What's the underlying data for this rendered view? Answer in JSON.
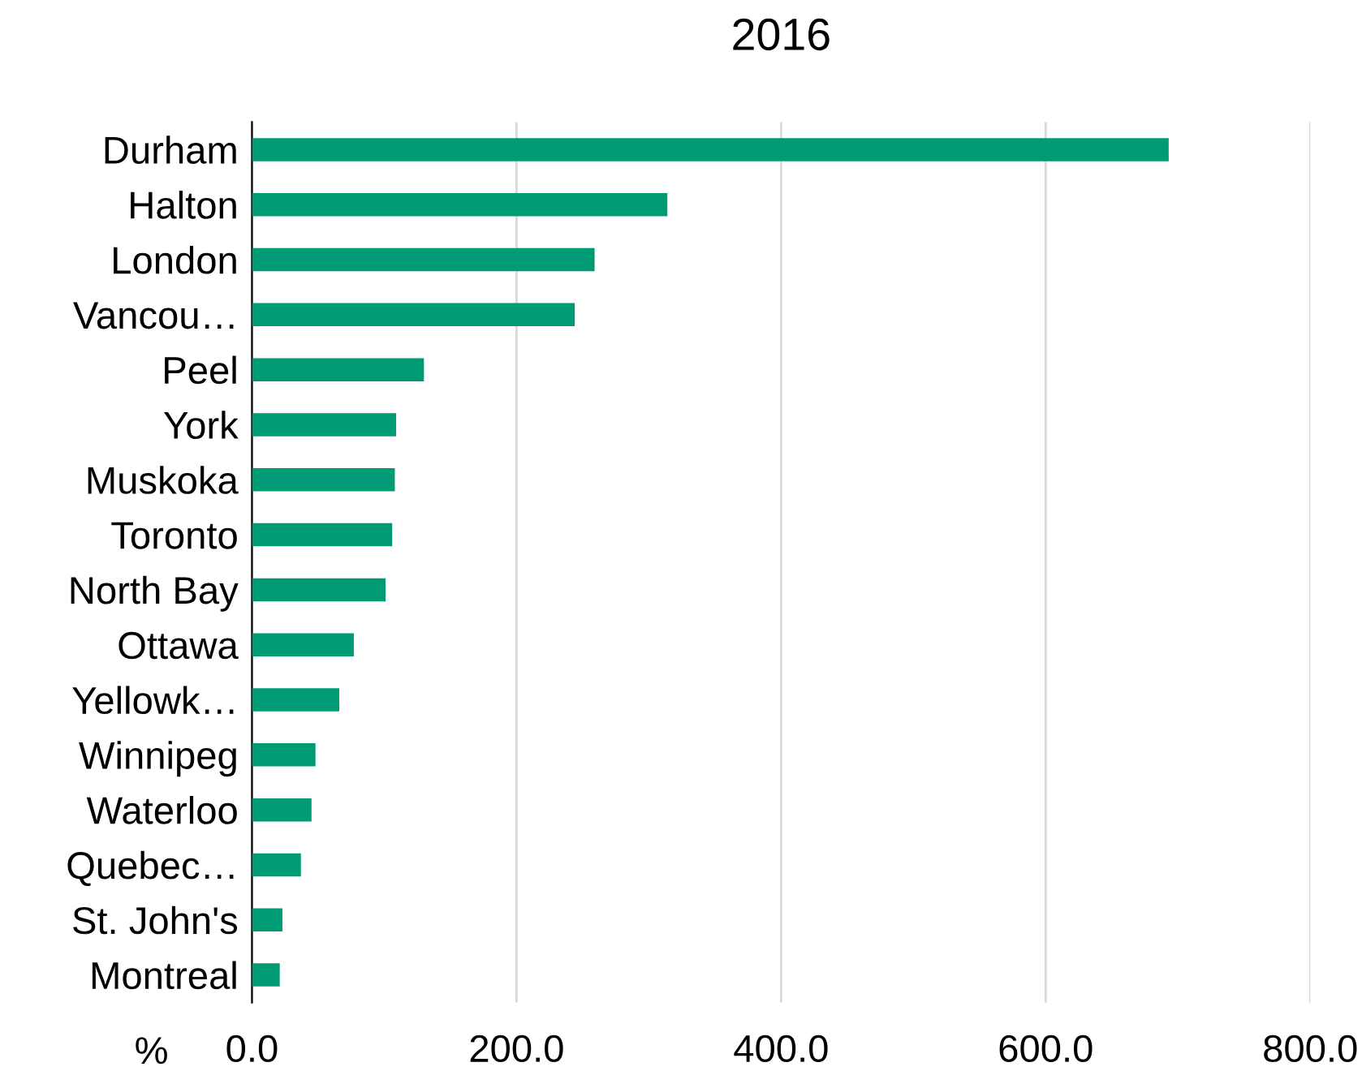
{
  "chart_data": {
    "type": "bar",
    "orientation": "horizontal",
    "title": "2016",
    "xlabel": "%",
    "categories": [
      "Durham",
      "Halton",
      "London",
      "Vancou…",
      "Peel",
      "York",
      "Muskoka",
      "Toronto",
      "North Bay",
      "Ottawa",
      "Yellowk…",
      "Winnipeg",
      "Waterloo",
      "Quebec…",
      "St. John's",
      "Montreal"
    ],
    "values": [
      693,
      314,
      259,
      244,
      130,
      109,
      108,
      106,
      101,
      77,
      66,
      48,
      45,
      37,
      23,
      21
    ],
    "color": "#009a74",
    "xlim": [
      0,
      800
    ],
    "xticks": [
      {
        "value": 0,
        "label": "0.0"
      },
      {
        "value": 200,
        "label": "200.0"
      },
      {
        "value": 400,
        "label": "400.0"
      },
      {
        "value": 600,
        "label": "600.0"
      },
      {
        "value": 800,
        "label": "800.0"
      }
    ],
    "grid": "x",
    "legend": false
  }
}
